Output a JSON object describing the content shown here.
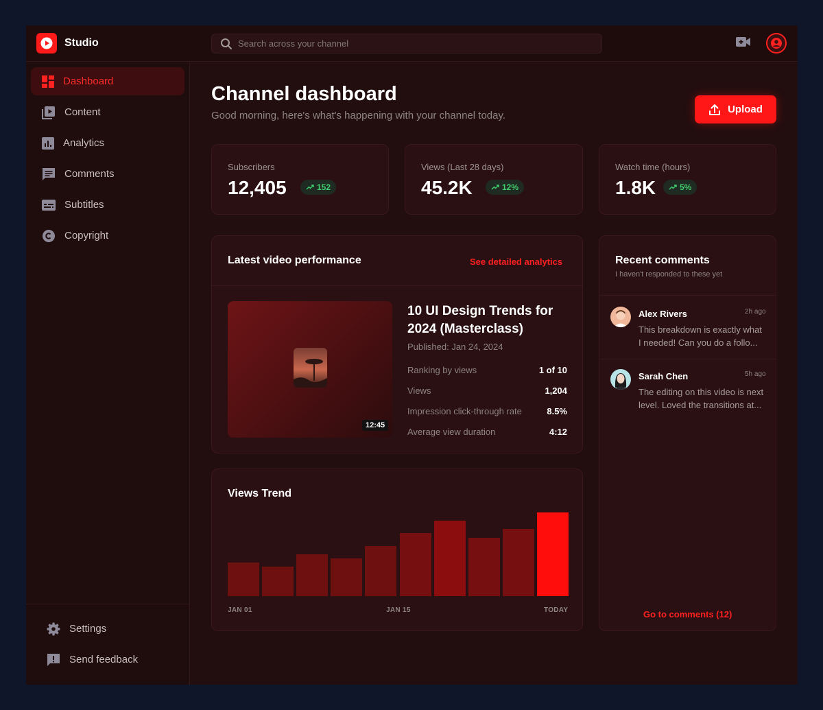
{
  "app": {
    "name": "Studio"
  },
  "search": {
    "placeholder": "Search across your channel"
  },
  "sidebar": {
    "items": [
      {
        "label": "Dashboard",
        "icon": "dashboard-icon",
        "active": true
      },
      {
        "label": "Content",
        "icon": "video-library-icon"
      },
      {
        "label": "Analytics",
        "icon": "analytics-icon"
      },
      {
        "label": "Comments",
        "icon": "comment-icon"
      },
      {
        "label": "Subtitles",
        "icon": "subtitles-icon"
      },
      {
        "label": "Copyright",
        "icon": "copyright-icon"
      }
    ],
    "bottom": [
      {
        "label": "Settings",
        "icon": "gear-icon"
      },
      {
        "label": "Send feedback",
        "icon": "feedback-icon"
      }
    ]
  },
  "header": {
    "title": "Channel dashboard",
    "subtitle": "Good morning, here's what's happening with your channel today.",
    "upload_label": "Upload"
  },
  "stats": [
    {
      "label": "Subscribers",
      "value": "12,405",
      "change": "152"
    },
    {
      "label": "Views (Last 28 days)",
      "value": "45.2K",
      "change": "12%"
    },
    {
      "label": "Watch time (hours)",
      "value": "1.8K",
      "change": "5%"
    }
  ],
  "latest_video": {
    "section_title": "Latest video performance",
    "link": "See detailed analytics",
    "title_line1": "10 UI Design Trends for",
    "title_line2": "2024 (Masterclass)",
    "published": "Published: Jan 24, 2024",
    "duration": "12:45",
    "metrics": [
      {
        "label": "Ranking by views",
        "value": "1 of 10"
      },
      {
        "label": "Views",
        "value": "1,204"
      },
      {
        "label": "Impression click-through rate",
        "value": "8.5%"
      },
      {
        "label": "Average view duration",
        "value": "4:12"
      }
    ]
  },
  "chart_data": {
    "type": "bar",
    "title": "Views Trend",
    "categories": [
      "1",
      "2",
      "3",
      "4",
      "5",
      "6",
      "7",
      "8",
      "9",
      "10"
    ],
    "values": [
      40,
      35,
      50,
      45,
      60,
      75,
      90,
      70,
      80,
      100
    ],
    "x_tick_labels": [
      "JAN 01",
      "JAN 15",
      "TODAY"
    ],
    "ylim": [
      0,
      100
    ],
    "colors": [
      "#6e0f10",
      "#6e0f10",
      "#6e0f10",
      "#6e0f10",
      "#6e0f10",
      "#750f10",
      "#8c0d0e",
      "#750f10",
      "#750f10",
      "#ff0d0d"
    ]
  },
  "comments": {
    "title": "Recent comments",
    "subtitle": "I haven't responded to these yet",
    "items": [
      {
        "name": "Alex Rivers",
        "time": "2h ago",
        "line1": "This breakdown is exactly what",
        "line2": "I needed! Can you do a follo..."
      },
      {
        "name": "Sarah Chen",
        "time": "5h ago",
        "line1": "The editing on this video is next",
        "line2": "level. Loved the transitions at..."
      }
    ],
    "footer_link": "Go to comments (12)"
  },
  "colors": {
    "accent": "#ff1717",
    "positive": "#3fcf6d",
    "background": "#220e0f"
  }
}
